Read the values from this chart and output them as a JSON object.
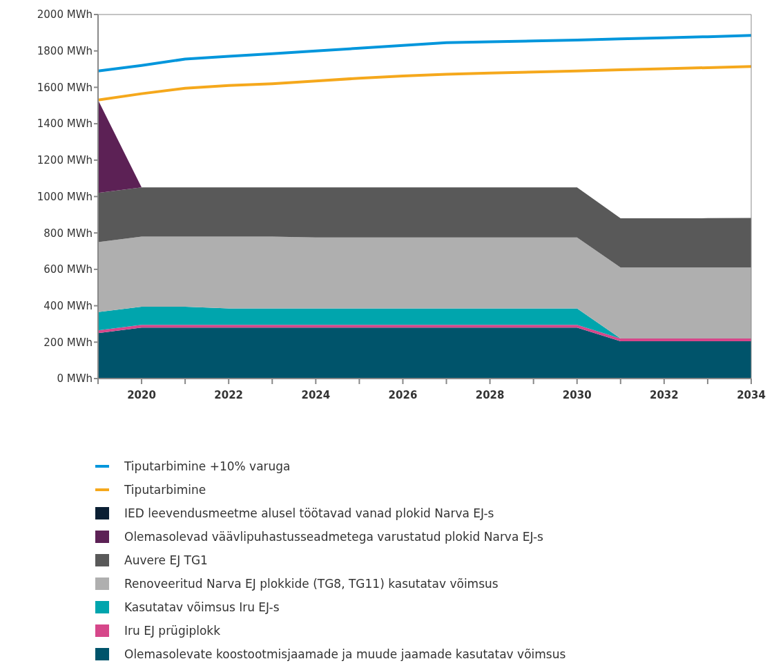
{
  "chart_data": {
    "type": "area",
    "stacked": true,
    "legend": "bottom",
    "x": [
      2019,
      2020,
      2021,
      2022,
      2023,
      2024,
      2025,
      2026,
      2027,
      2028,
      2029,
      2030,
      2031,
      2032,
      2033,
      2034
    ],
    "xlim": [
      2019,
      2034
    ],
    "xticks": [
      {
        "value": 2019,
        "label": null
      },
      2020,
      {
        "value": 2021,
        "label": null
      },
      2022,
      {
        "value": 2023,
        "label": null
      },
      2024,
      {
        "value": 2025,
        "label": null
      },
      2026,
      {
        "value": 2027,
        "label": null
      },
      2028,
      {
        "value": 2029,
        "label": null
      },
      2030,
      {
        "value": 2031,
        "label": null
      },
      2032,
      {
        "value": 2033,
        "label": null
      },
      2034
    ],
    "ylim": [
      0,
      2000
    ],
    "yticks": [
      {
        "value": 0,
        "label": "0 MWh"
      },
      {
        "value": 200,
        "label": "200 MWh"
      },
      {
        "value": 400,
        "label": "400 MWh"
      },
      {
        "value": 600,
        "label": "600 MWh"
      },
      {
        "value": 800,
        "label": "800 MWh"
      },
      {
        "value": 1000,
        "label": "1000 MWh"
      },
      {
        "value": 1200,
        "label": "1200 MWh"
      },
      {
        "value": 1400,
        "label": "1400 MWh"
      },
      {
        "value": 1600,
        "label": "1600 MWh"
      },
      {
        "value": 1800,
        "label": "1800 MWh"
      },
      {
        "value": 2000,
        "label": "2000 MWh"
      }
    ],
    "series": [
      {
        "name": "Olemasolevate koostootmisjaamade ja muude jaamade kasutatav võimsus",
        "color": "#00546b",
        "values": [
          250,
          280,
          280,
          280,
          280,
          280,
          280,
          280,
          280,
          280,
          280,
          280,
          205,
          205,
          205,
          205
        ]
      },
      {
        "name": "Iru EJ prügiplokk",
        "color": "#d6478a",
        "values": [
          15,
          15,
          15,
          15,
          15,
          15,
          15,
          15,
          15,
          15,
          15,
          15,
          15,
          15,
          15,
          15
        ]
      },
      {
        "name": "Kasutatav võimsus Iru EJ-s",
        "color": "#00a5ad",
        "values": [
          100,
          100,
          100,
          90,
          90,
          90,
          90,
          90,
          90,
          90,
          90,
          90,
          0,
          0,
          0,
          0
        ]
      },
      {
        "name": "Renoveeritud Narva EJ plokkide (TG8, TG11) kasutatav võimsus",
        "color": "#afafaf",
        "values": [
          385,
          385,
          385,
          395,
          395,
          390,
          390,
          390,
          390,
          390,
          390,
          390,
          390,
          390,
          390,
          390
        ]
      },
      {
        "name": "Auvere EJ TG1",
        "color": "#595959",
        "values": [
          270,
          270,
          270,
          270,
          270,
          275,
          275,
          275,
          275,
          275,
          275,
          275,
          270,
          270,
          271,
          272
        ]
      },
      {
        "name": "Olemasolevad väävlipuhastusseadmetega varustatud plokid Narva EJ-s",
        "color": "#5c2155",
        "values": [
          510,
          0,
          0,
          0,
          0,
          0,
          0,
          0,
          0,
          0,
          0,
          0,
          0,
          0,
          0,
          0
        ]
      },
      {
        "name": "IED leevendusmeetme alusel töötavad vanad plokid Narva EJ-s",
        "color": "#0b1f33",
        "values": [
          null,
          null,
          null,
          null,
          null,
          null,
          null,
          null,
          null,
          null,
          null,
          null,
          null,
          null,
          null,
          null
        ]
      },
      {
        "name": "Tiputarbimine",
        "type": "line",
        "color": "#f5a81c",
        "values": [
          1530,
          1565,
          1595,
          1610,
          1620,
          1635,
          1650,
          1662,
          1672,
          1678,
          1684,
          1690,
          1696,
          1702,
          1708,
          1714
        ]
      },
      {
        "name": "Tiputarbimine +10% varuga",
        "type": "line",
        "color": "#0096dc",
        "values": [
          1690,
          1720,
          1755,
          1770,
          1785,
          1800,
          1815,
          1830,
          1845,
          1850,
          1855,
          1860,
          1866,
          1872,
          1878,
          1885
        ]
      }
    ]
  }
}
